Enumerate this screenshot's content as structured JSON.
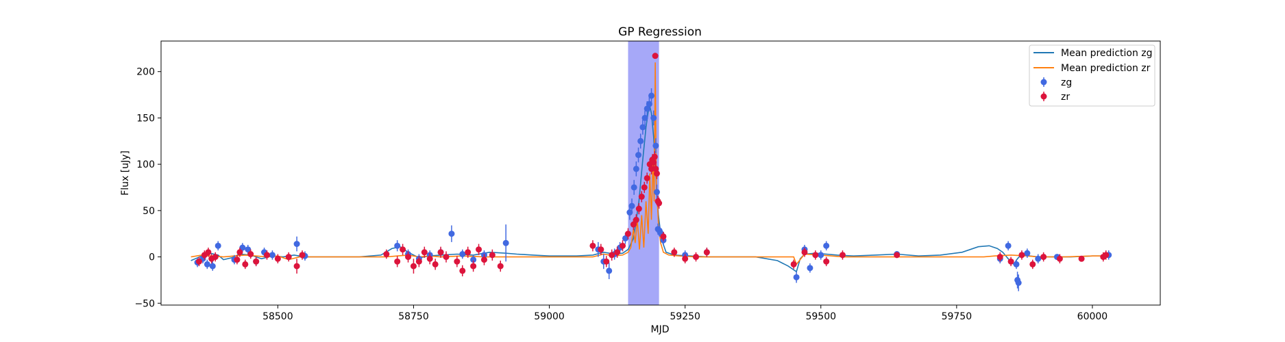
{
  "chart_data": {
    "type": "scatter",
    "title": "GP Regression",
    "xlabel": "MJD",
    "ylabel": "Flux [uJy]",
    "xlim": [
      58285,
      60125
    ],
    "ylim": [
      -52,
      233
    ],
    "xticks": [
      58500,
      58750,
      59000,
      59250,
      59500,
      59750,
      60000
    ],
    "yticks": [
      -50,
      0,
      50,
      100,
      150,
      200
    ],
    "grid": false,
    "legend_position": "top-right",
    "highlight_band": {
      "x0": 59145,
      "x1": 59202,
      "color": "#a6a8f8"
    },
    "series": [
      {
        "name": "Mean prediction zg",
        "kind": "line",
        "color": "#1f77b4",
        "x": [
          58340,
          58360,
          58375,
          58390,
          58400,
          58415,
          58430,
          58450,
          58470,
          58490,
          58510,
          58530,
          58550,
          58600,
          58650,
          58690,
          58710,
          58725,
          58740,
          58760,
          58780,
          58800,
          58830,
          58860,
          58890,
          58920,
          58940,
          58970,
          59000,
          59050,
          59080,
          59100,
          59120,
          59135,
          59145,
          59155,
          59165,
          59172,
          59178,
          59184,
          59188,
          59192,
          59196,
          59200,
          59206,
          59215,
          59230,
          59260,
          59290,
          59320,
          59380,
          59420,
          59440,
          59455,
          59462,
          59470,
          59490,
          59510,
          59530,
          59560,
          59600,
          59640,
          59680,
          59720,
          59760,
          59790,
          59810,
          59825,
          59835,
          59845,
          59855,
          59862,
          59870,
          59885,
          59900,
          59930,
          59960,
          60000,
          60030
        ],
        "y": [
          -4,
          1,
          4,
          2,
          -3,
          -1,
          3,
          2,
          -2,
          1,
          0,
          2,
          0,
          0,
          0,
          2,
          9,
          11,
          5,
          -1,
          1,
          2,
          3,
          2,
          5,
          4,
          3,
          2,
          1,
          1,
          2,
          5,
          3,
          4,
          8,
          20,
          60,
          105,
          140,
          165,
          155,
          130,
          90,
          50,
          20,
          5,
          2,
          1,
          0,
          0,
          0,
          -4,
          -10,
          -16,
          -2,
          3,
          4,
          3,
          2,
          1,
          2,
          3,
          1,
          2,
          5,
          11,
          12,
          9,
          5,
          -2,
          -8,
          -2,
          3,
          1,
          0,
          0,
          0,
          1,
          1
        ]
      },
      {
        "name": "Mean prediction zr",
        "kind": "line",
        "color": "#ff7f0e",
        "x": [
          58340,
          58360,
          58380,
          58400,
          58420,
          58440,
          58460,
          58480,
          58500,
          58520,
          58540,
          58600,
          58700,
          58720,
          58740,
          58760,
          58780,
          58800,
          58840,
          58880,
          58920,
          59000,
          59080,
          59100,
          59120,
          59135,
          59145,
          59150,
          59155,
          59158,
          59162,
          59166,
          59170,
          59174,
          59178,
          59182,
          59185,
          59188,
          59191,
          59193,
          59195,
          59197,
          59199,
          59201,
          59205,
          59210,
          59220,
          59240,
          59270,
          59300,
          59400,
          59450,
          59455,
          59470,
          59500,
          59520,
          59540,
          59600,
          59700,
          59800,
          59820,
          59850,
          59880,
          59900,
          59950,
          60000,
          60030
        ],
        "y": [
          0,
          2,
          1,
          0,
          1,
          2,
          1,
          0,
          1,
          -3,
          0,
          0,
          0,
          1,
          2,
          0,
          1,
          0,
          1,
          0,
          0,
          0,
          0,
          3,
          1,
          2,
          5,
          10,
          30,
          15,
          40,
          8,
          45,
          10,
          60,
          25,
          90,
          40,
          110,
          60,
          210,
          70,
          60,
          35,
          15,
          5,
          2,
          1,
          0,
          0,
          0,
          0,
          -8,
          3,
          2,
          1,
          0,
          0,
          0,
          0,
          1,
          2,
          1,
          0,
          0,
          1,
          1
        ]
      },
      {
        "name": "zg",
        "kind": "errorbar",
        "color": "#4169e1",
        "x": [
          58352,
          58362,
          58370,
          58380,
          58390,
          58420,
          58435,
          58445,
          58460,
          58475,
          58490,
          58535,
          58550,
          58720,
          58740,
          58760,
          58780,
          58800,
          58820,
          58840,
          58860,
          58880,
          58920,
          59090,
          59100,
          59110,
          59120,
          59130,
          59140,
          59148,
          59152,
          59156,
          59160,
          59164,
          59168,
          59172,
          59176,
          59180,
          59184,
          59188,
          59192,
          59196,
          59198,
          59200,
          59203,
          59206,
          59210,
          59250,
          59290,
          59455,
          59470,
          59480,
          59500,
          59510,
          59640,
          59830,
          59845,
          59860,
          59862,
          59864,
          59880,
          59900,
          59935,
          60030
        ],
        "y": [
          -6,
          -2,
          -8,
          -10,
          12,
          -3,
          10,
          8,
          -5,
          5,
          2,
          14,
          1,
          12,
          3,
          -2,
          2,
          5,
          25,
          3,
          -3,
          2,
          15,
          8,
          -5,
          -15,
          3,
          10,
          20,
          48,
          55,
          75,
          95,
          110,
          125,
          140,
          150,
          160,
          165,
          174,
          150,
          120,
          70,
          30,
          28,
          25,
          18,
          2,
          5,
          -22,
          8,
          -12,
          2,
          12,
          3,
          -2,
          12,
          -8,
          -25,
          -28,
          4,
          -2,
          0,
          2
        ],
        "err": [
          5,
          5,
          5,
          5,
          5,
          5,
          5,
          5,
          5,
          5,
          5,
          8,
          5,
          6,
          5,
          5,
          5,
          5,
          9,
          5,
          5,
          5,
          20,
          8,
          8,
          9,
          6,
          6,
          6,
          8,
          8,
          8,
          8,
          8,
          8,
          8,
          8,
          8,
          8,
          8,
          8,
          8,
          8,
          6,
          6,
          6,
          5,
          5,
          5,
          6,
          5,
          5,
          5,
          5,
          3,
          5,
          5,
          5,
          9,
          9,
          5,
          5,
          3,
          5
        ]
      },
      {
        "name": "zr",
        "kind": "errorbar",
        "color": "#dc143c",
        "x": [
          58355,
          58365,
          58372,
          58378,
          58385,
          58425,
          58430,
          58440,
          58450,
          58460,
          58480,
          58500,
          58520,
          58535,
          58545,
          58700,
          58720,
          58730,
          58740,
          58750,
          58760,
          58770,
          58780,
          58790,
          58800,
          58810,
          58830,
          58840,
          58850,
          58860,
          58870,
          58880,
          58895,
          58910,
          59080,
          59095,
          59105,
          59115,
          59125,
          59135,
          59145,
          59155,
          59160,
          59165,
          59170,
          59175,
          59180,
          59185,
          59188,
          59190,
          59192,
          59194,
          59196,
          59198,
          59200,
          59202,
          59210,
          59230,
          59250,
          59270,
          59290,
          59450,
          59470,
          59490,
          59510,
          59540,
          59640,
          59830,
          59850,
          59870,
          59890,
          59910,
          59940,
          59980,
          60020,
          60025
        ],
        "y": [
          -5,
          2,
          5,
          -2,
          0,
          -3,
          5,
          -8,
          3,
          -5,
          2,
          -2,
          0,
          -10,
          2,
          3,
          -5,
          8,
          0,
          -10,
          -5,
          5,
          -2,
          -8,
          5,
          0,
          -5,
          -15,
          5,
          -10,
          8,
          -3,
          2,
          -10,
          12,
          8,
          -5,
          2,
          5,
          12,
          25,
          35,
          40,
          52,
          65,
          75,
          85,
          100,
          95,
          105,
          102,
          108,
          95,
          90,
          60,
          58,
          22,
          5,
          -2,
          0,
          5,
          -8,
          5,
          2,
          -5,
          2,
          2,
          0,
          -5,
          2,
          -8,
          0,
          -2,
          -2,
          0,
          2
        ],
        "err": [
          5,
          5,
          5,
          5,
          5,
          5,
          5,
          5,
          5,
          5,
          5,
          5,
          5,
          8,
          5,
          5,
          6,
          6,
          6,
          8,
          6,
          6,
          6,
          6,
          6,
          6,
          6,
          6,
          6,
          6,
          6,
          6,
          6,
          6,
          6,
          6,
          6,
          6,
          6,
          6,
          6,
          6,
          6,
          6,
          6,
          6,
          6,
          6,
          6,
          6,
          6,
          6,
          6,
          6,
          6,
          6,
          5,
          5,
          5,
          5,
          5,
          5,
          5,
          5,
          5,
          5,
          3,
          5,
          5,
          5,
          5,
          5,
          5,
          3,
          5,
          5
        ]
      }
    ],
    "outlier_points": [
      {
        "series": "zr",
        "x": 59195,
        "y": 217
      }
    ]
  }
}
